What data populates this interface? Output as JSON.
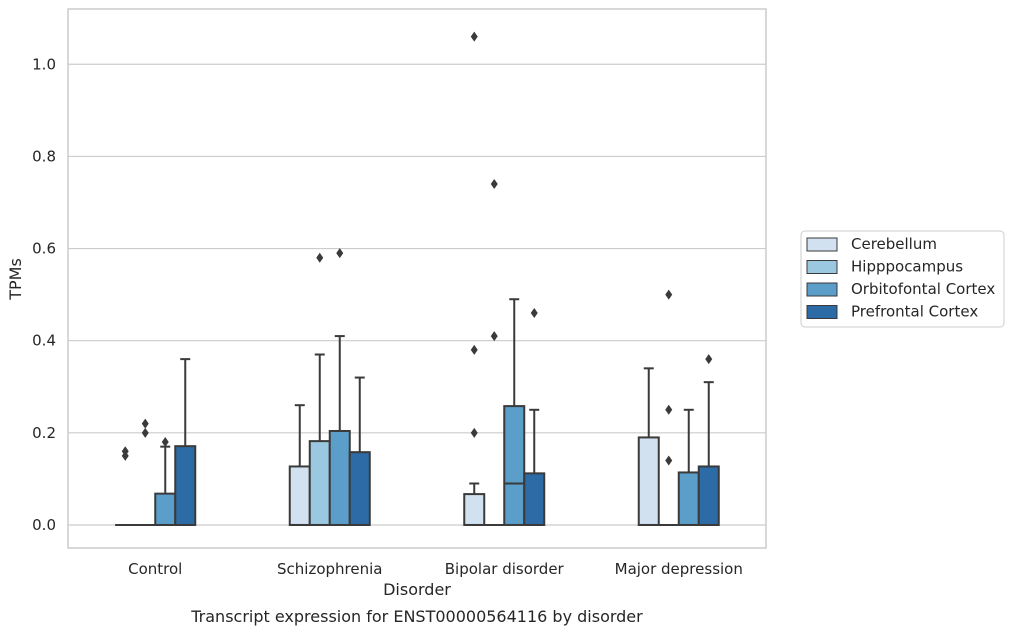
{
  "caption": "Transcript expression for ENST00000564116 by disorder",
  "chart_data": {
    "type": "boxplot",
    "title": "",
    "xlabel": "Disorder",
    "ylabel": "TPMs",
    "ylim": [
      -0.05,
      1.12
    ],
    "yticks": [
      "0.0",
      "0.2",
      "0.4",
      "0.6",
      "0.8",
      "1.0"
    ],
    "ytick_values": [
      0.0,
      0.2,
      0.4,
      0.6,
      0.8,
      1.0
    ],
    "grid": "horizontal",
    "legend_position": "right",
    "categories": [
      "Control",
      "Schizophrenia",
      "Bipolar disorder",
      "Major depression"
    ],
    "series": [
      {
        "name": "Cerebellum",
        "color": "#d1e1f0",
        "boxes": [
          {
            "q1": 0.0,
            "median": 0.0,
            "q3": 0.0,
            "whisker_low": 0.0,
            "whisker_high": 0.0,
            "outliers": [
              0.15,
              0.16
            ]
          },
          {
            "q1": 0.0,
            "median": 0.0,
            "q3": 0.127,
            "whisker_low": 0.0,
            "whisker_high": 0.26,
            "outliers": []
          },
          {
            "q1": 0.0,
            "median": 0.0,
            "q3": 0.067,
            "whisker_low": 0.0,
            "whisker_high": 0.09,
            "outliers": [
              0.2,
              0.38,
              1.06
            ]
          },
          {
            "q1": 0.0,
            "median": 0.0,
            "q3": 0.19,
            "whisker_low": 0.0,
            "whisker_high": 0.34,
            "outliers": []
          }
        ]
      },
      {
        "name": "Hipppocampus",
        "color": "#9ac8e0",
        "boxes": [
          {
            "q1": 0.0,
            "median": 0.0,
            "q3": 0.0,
            "whisker_low": 0.0,
            "whisker_high": 0.0,
            "outliers": [
              0.2,
              0.22
            ]
          },
          {
            "q1": 0.0,
            "median": 0.0,
            "q3": 0.182,
            "whisker_low": 0.0,
            "whisker_high": 0.37,
            "outliers": [
              0.58
            ]
          },
          {
            "q1": 0.0,
            "median": 0.0,
            "q3": 0.0,
            "whisker_low": 0.0,
            "whisker_high": 0.0,
            "outliers": [
              0.41,
              0.74
            ]
          },
          {
            "q1": 0.0,
            "median": 0.0,
            "q3": 0.0,
            "whisker_low": 0.0,
            "whisker_high": 0.0,
            "outliers": [
              0.14,
              0.25,
              0.5
            ]
          }
        ]
      },
      {
        "name": "Orbitofontal Cortex",
        "color": "#5a9ec9",
        "boxes": [
          {
            "q1": 0.0,
            "median": 0.0,
            "q3": 0.068,
            "whisker_low": 0.0,
            "whisker_high": 0.17,
            "outliers": [
              0.18
            ]
          },
          {
            "q1": 0.0,
            "median": 0.0,
            "q3": 0.204,
            "whisker_low": 0.0,
            "whisker_high": 0.41,
            "outliers": [
              0.59
            ]
          },
          {
            "q1": 0.0,
            "median": 0.09,
            "q3": 0.258,
            "whisker_low": 0.0,
            "whisker_high": 0.49,
            "outliers": []
          },
          {
            "q1": 0.0,
            "median": 0.0,
            "q3": 0.114,
            "whisker_low": 0.0,
            "whisker_high": 0.25,
            "outliers": []
          }
        ]
      },
      {
        "name": "Prefrontal Cortex",
        "color": "#2d6ba6",
        "boxes": [
          {
            "q1": 0.0,
            "median": 0.0,
            "q3": 0.171,
            "whisker_low": 0.0,
            "whisker_high": 0.36,
            "outliers": []
          },
          {
            "q1": 0.0,
            "median": 0.0,
            "q3": 0.158,
            "whisker_low": 0.0,
            "whisker_high": 0.32,
            "outliers": []
          },
          {
            "q1": 0.0,
            "median": 0.0,
            "q3": 0.112,
            "whisker_low": 0.0,
            "whisker_high": 0.25,
            "outliers": [
              0.46
            ]
          },
          {
            "q1": 0.0,
            "median": 0.0,
            "q3": 0.127,
            "whisker_low": 0.0,
            "whisker_high": 0.31,
            "outliers": [
              0.36
            ]
          }
        ]
      }
    ]
  }
}
